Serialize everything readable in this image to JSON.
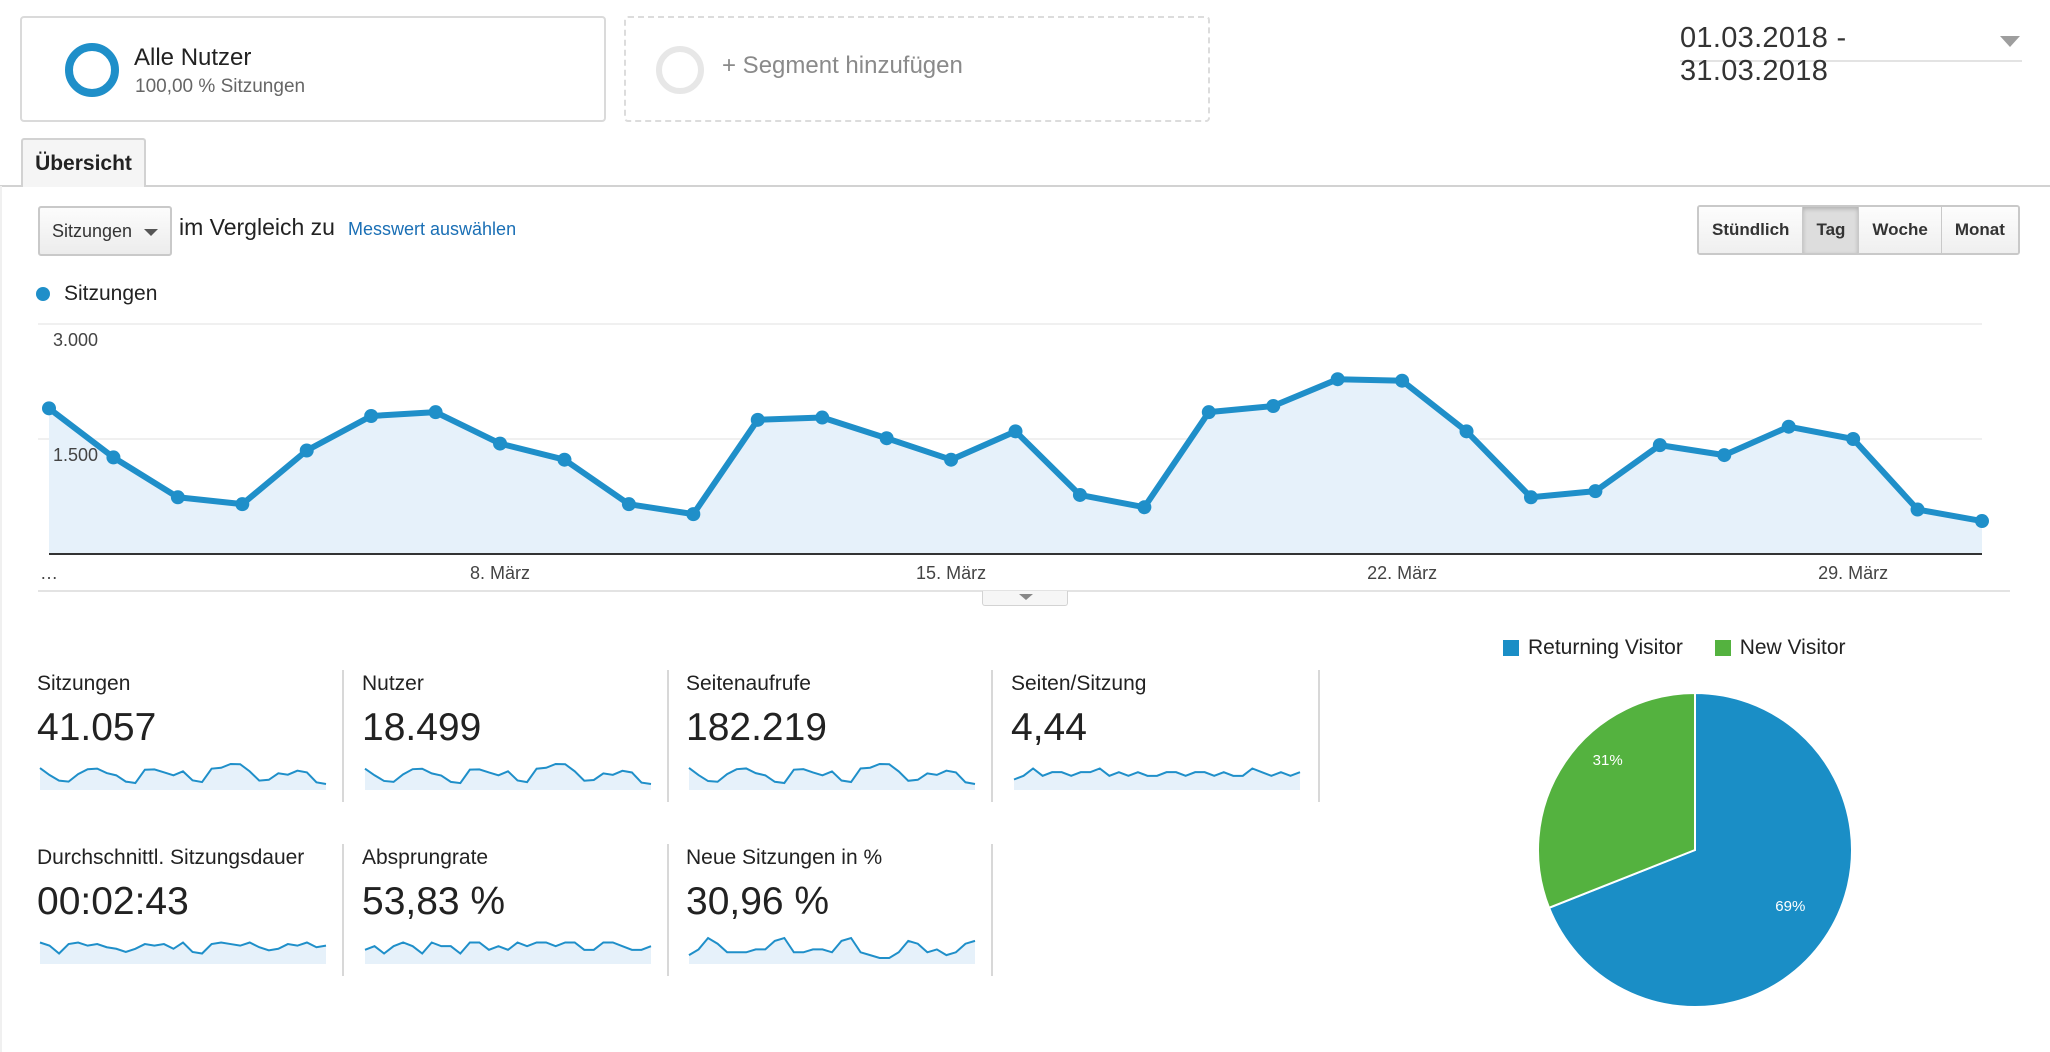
{
  "segments": {
    "active": {
      "name": "Alle Nutzer",
      "share": "100,00 % Sitzungen",
      "color": "#1f8fc9"
    },
    "add_label": "+ Segment hinzufügen"
  },
  "date_range": "01.03.2018 - 31.03.2018",
  "tabs": [
    {
      "label": "Übersicht",
      "active": true
    }
  ],
  "controls": {
    "metric_select": "Sitzungen",
    "compare_label": "im Vergleich zu",
    "compare_link": "Messwert auswählen",
    "granularity": [
      {
        "label": "Stündlich",
        "active": false
      },
      {
        "label": "Tag",
        "active": true
      },
      {
        "label": "Woche",
        "active": false
      },
      {
        "label": "Monat",
        "active": false
      }
    ]
  },
  "colors": {
    "accent": "#1f8fc9",
    "area_fill": "#e6f1fa",
    "returning": "#1a8ec6",
    "new": "#54b23f"
  },
  "chart_data": [
    {
      "type": "line",
      "series": [
        {
          "name": "Sitzungen",
          "values": [
            1900,
            1260,
            740,
            650,
            1350,
            1800,
            1850,
            1440,
            1230,
            650,
            520,
            1750,
            1780,
            1510,
            1230,
            1600,
            770,
            610,
            1850,
            1930,
            2280,
            2260,
            1600,
            740,
            820,
            1420,
            1290,
            1660,
            1500,
            580,
            430
          ]
        }
      ],
      "x": [
        "1. März",
        "2. März",
        "3. März",
        "4. März",
        "5. März",
        "6. März",
        "7. März",
        "8. März",
        "9. März",
        "10. März",
        "11. März",
        "12. März",
        "13. März",
        "14. März",
        "15. März",
        "16. März",
        "17. März",
        "18. März",
        "19. März",
        "20. März",
        "21. März",
        "22. März",
        "23. März",
        "24. März",
        "25. März",
        "26. März",
        "27. März",
        "28. März",
        "29. März",
        "30. März",
        "31. März"
      ],
      "x_tick_labels": [
        "…",
        "8. März",
        "15. März",
        "22. März",
        "29. März"
      ],
      "y_tick_labels": [
        "3.000",
        "1.500"
      ],
      "ylim": [
        0,
        3000
      ],
      "legend": "top-left",
      "grid": true
    },
    {
      "type": "pie",
      "labels": [
        "Returning Visitor",
        "New Visitor"
      ],
      "values": [
        69,
        31
      ],
      "value_labels": [
        "69%",
        "31%"
      ],
      "legend": "top"
    }
  ],
  "scorecards": [
    {
      "label": "Sitzungen",
      "value": "41.057",
      "trend": [
        1900,
        1260,
        740,
        650,
        1350,
        1800,
        1850,
        1440,
        1230,
        650,
        520,
        1750,
        1780,
        1510,
        1230,
        1600,
        770,
        610,
        1850,
        1930,
        2280,
        2260,
        1600,
        740,
        820,
        1420,
        1290,
        1660,
        1500,
        580,
        430
      ]
    },
    {
      "label": "Nutzer",
      "value": "18.499",
      "trend": [
        900,
        620,
        380,
        340,
        660,
        880,
        900,
        700,
        610,
        340,
        290,
        860,
        870,
        740,
        620,
        790,
        400,
        330,
        900,
        940,
        1100,
        1090,
        790,
        390,
        420,
        700,
        640,
        810,
        740,
        310,
        250
      ]
    },
    {
      "label": "Seitenaufrufe",
      "value": "182.219",
      "trend": [
        8500,
        5600,
        3200,
        2900,
        6000,
        8000,
        8300,
        6400,
        5500,
        2900,
        2400,
        7800,
        8000,
        6700,
        5500,
        7100,
        3400,
        2800,
        8300,
        8600,
        10100,
        10000,
        7100,
        3300,
        3700,
        6300,
        5700,
        7400,
        6700,
        2700,
        2000
      ]
    },
    {
      "label": "Seiten/Sitzung",
      "value": "4,44",
      "trend": [
        4.3,
        4.4,
        4.6,
        4.4,
        4.5,
        4.5,
        4.4,
        4.5,
        4.5,
        4.6,
        4.4,
        4.5,
        4.4,
        4.5,
        4.4,
        4.4,
        4.5,
        4.5,
        4.4,
        4.5,
        4.5,
        4.4,
        4.5,
        4.4,
        4.4,
        4.6,
        4.5,
        4.4,
        4.5,
        4.4,
        4.5
      ]
    },
    {
      "label": "Durchschnittl. Sitzungsdauer",
      "value": "00:02:43",
      "trend": [
        170,
        160,
        135,
        165,
        170,
        160,
        165,
        155,
        150,
        140,
        150,
        165,
        160,
        165,
        150,
        170,
        140,
        135,
        165,
        170,
        165,
        160,
        170,
        155,
        145,
        150,
        165,
        160,
        170,
        155,
        160
      ]
    },
    {
      "label": "Absprungrate",
      "value": "53,83 %",
      "trend": [
        53,
        54,
        52,
        54,
        55,
        54,
        52,
        55,
        54,
        54,
        52,
        55,
        55,
        53,
        54,
        53,
        55,
        54,
        55,
        55,
        54,
        55,
        55,
        53,
        53,
        55,
        55,
        54,
        53,
        53,
        54
      ]
    },
    {
      "label": "Neue Sitzungen in %",
      "value": "30,96 %",
      "trend": [
        29,
        31,
        35,
        33,
        30,
        30,
        30,
        31,
        31,
        34,
        35,
        30,
        30,
        31,
        31,
        30,
        34,
        35,
        30,
        29,
        28,
        28,
        30,
        34,
        33,
        30,
        31,
        29,
        30,
        33,
        34
      ]
    }
  ]
}
